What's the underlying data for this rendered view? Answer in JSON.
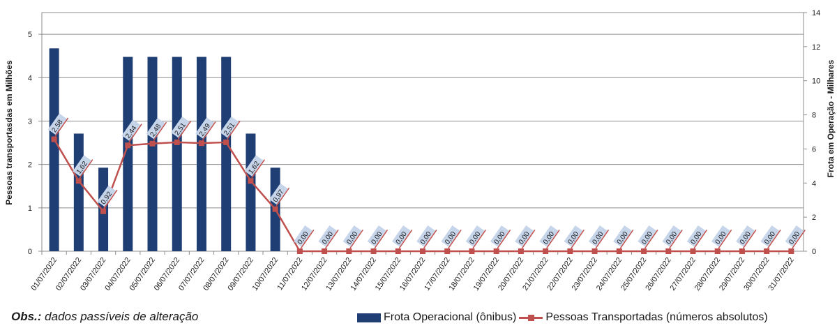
{
  "chart_data": {
    "type": "bar+line",
    "categories": [
      "01/07/2022",
      "02/07/2022",
      "03/07/2022",
      "04/07/2022",
      "05/07/2022",
      "06/07/2022",
      "07/07/2022",
      "08/07/2022",
      "09/07/2022",
      "10/07/2022",
      "11/07/2022",
      "12/07/2022",
      "13/07/2022",
      "14/07/2022",
      "15/07/2022",
      "16/07/2022",
      "17/07/2022",
      "18/07/2022",
      "19/07/2022",
      "20/07/2022",
      "21/07/2022",
      "22/07/2022",
      "23/07/2022",
      "24/07/2022",
      "25/07/2022",
      "26/07/2022",
      "27/07/2022",
      "28/07/2022",
      "29/07/2022",
      "30/07/2022",
      "31/07/2022"
    ],
    "series": [
      {
        "name": "Frota Operacional (ônibus)",
        "type": "bar",
        "axis": "right",
        "color": "#1f3f74",
        "values": [
          11.9,
          6.9,
          4.9,
          11.4,
          11.4,
          11.4,
          11.4,
          11.4,
          6.9,
          4.9,
          0,
          0,
          0,
          0,
          0,
          0,
          0,
          0,
          0,
          0,
          0,
          0,
          0,
          0,
          0,
          0,
          0,
          0,
          0,
          0,
          0
        ]
      },
      {
        "name": "Pessoas Transportadas (números absolutos)",
        "type": "line",
        "axis": "left",
        "color": "#c0504d",
        "values": [
          2.58,
          1.62,
          0.92,
          2.44,
          2.48,
          2.51,
          2.49,
          2.51,
          1.62,
          0.97,
          0,
          0,
          0,
          0,
          0,
          0,
          0,
          0,
          0,
          0,
          0,
          0,
          0,
          0,
          0,
          0,
          0,
          0,
          0,
          0,
          0
        ],
        "labels": [
          "2,58",
          "1,62",
          "0,92",
          "2,44",
          "2,48",
          "2,51",
          "2,49",
          "2,51",
          "1,62",
          "0,97",
          "0,00",
          "0,00",
          "0,00",
          "0,00",
          "0,00",
          "0,00",
          "0,00",
          "0,00",
          "0,00",
          "0,00",
          "0,00",
          "0,00",
          "0,00",
          "0,00",
          "0,00",
          "0,00",
          "0,00",
          "0,00",
          "0,00",
          "0,00",
          "0,00"
        ]
      }
    ],
    "title": "",
    "ylabel_left": "Pessoas transportasdas em Milhões",
    "ylabel_right": "Frota  em Operação - Milhares",
    "ylim_left": [
      0,
      5.5
    ],
    "ylim_right": [
      0,
      14
    ],
    "yticks_left": [
      "0",
      "1",
      "2",
      "3",
      "4",
      "5"
    ],
    "yticks_right": [
      "0",
      "2",
      "4",
      "6",
      "8",
      "10",
      "12",
      "14"
    ],
    "grid": true,
    "legend_position": "bottom-right"
  },
  "footnote": {
    "label": "Obs.:",
    "text": " dados passíveis de alteração"
  },
  "legend": {
    "bar_label": "Frota Operacional (ônibus)",
    "line_label": "Pessoas Transportadas (números absolutos)"
  }
}
